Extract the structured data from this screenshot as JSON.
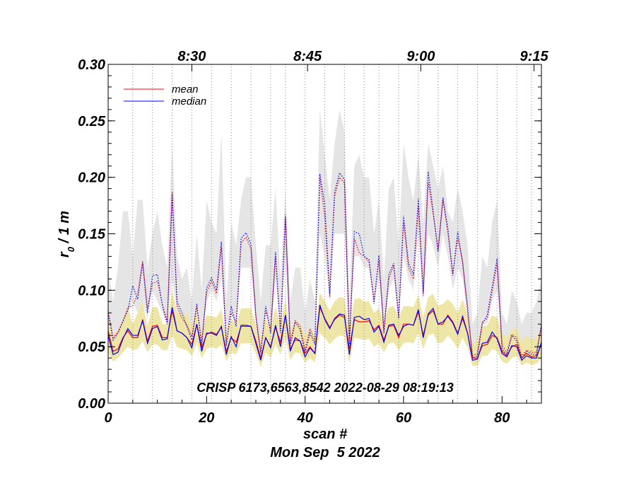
{
  "chart_data": {
    "type": "line",
    "title": "",
    "xlabel": "scan #",
    "ylabel_main": "r",
    "ylabel_sub": "0",
    "ylabel_rest": " / 1 m",
    "date_label": "Mon Sep  5 2022",
    "annotation": "CRISP 6173,6563,8542 2022-08-29 08:19:13",
    "xlim": [
      0,
      88
    ],
    "ylim": [
      0,
      0.3
    ],
    "x_ticks": [
      0,
      20,
      40,
      60,
      80
    ],
    "x_tick_labels": [
      "0",
      "20",
      "40",
      "60",
      "80"
    ],
    "y_ticks": [
      0.0,
      0.05,
      0.1,
      0.15,
      0.2,
      0.25,
      0.3
    ],
    "y_tick_labels": [
      "0.00",
      "0.05",
      "0.10",
      "0.15",
      "0.20",
      "0.25",
      "0.30"
    ],
    "top_axis_labels": [
      {
        "scan": 17,
        "label": "8:30"
      },
      {
        "scan": 40.5,
        "label": "8:45"
      },
      {
        "scan": 63.5,
        "label": "9:00"
      },
      {
        "scan": 86.5,
        "label": "9:15"
      }
    ],
    "vertical_grid_scans": [
      5,
      9,
      13,
      17,
      21,
      25,
      29,
      33,
      36,
      40,
      44,
      48,
      52,
      55,
      59,
      63,
      67,
      71,
      75,
      79,
      83,
      86
    ],
    "legend": [
      {
        "label": "mean",
        "color": "#ff0000"
      },
      {
        "label": "median",
        "color": "#0000ff"
      }
    ],
    "colors": {
      "mean": "#ff0000",
      "median": "#0000ff",
      "gray_band": "#e5e5e5",
      "yellow_band": "#eee6a6"
    },
    "x": [
      0,
      1,
      2,
      3,
      4,
      5,
      6,
      7,
      8,
      9,
      10,
      11,
      12,
      13,
      14,
      15,
      16,
      17,
      18,
      19,
      20,
      21,
      22,
      23,
      24,
      25,
      26,
      27,
      28,
      29,
      30,
      31,
      32,
      33,
      34,
      35,
      36,
      37,
      38,
      39,
      40,
      41,
      42,
      43,
      44,
      45,
      46,
      47,
      48,
      49,
      50,
      51,
      52,
      53,
      54,
      55,
      56,
      57,
      58,
      59,
      60,
      61,
      62,
      63,
      64,
      65,
      66,
      67,
      68,
      69,
      70,
      71,
      72,
      73,
      74,
      75,
      76,
      77,
      78,
      79,
      80,
      81,
      82,
      83,
      84,
      85,
      86,
      87,
      88
    ],
    "series": [
      {
        "name": "mean",
        "style": "solid",
        "color": "#ff0000",
        "values": [
          0.064,
          0.046,
          0.048,
          0.058,
          0.064,
          0.058,
          0.058,
          0.074,
          0.055,
          0.068,
          0.069,
          0.058,
          0.058,
          0.082,
          0.064,
          0.062,
          0.058,
          0.052,
          0.07,
          0.049,
          0.061,
          0.063,
          0.061,
          0.067,
          0.046,
          0.058,
          0.054,
          0.068,
          0.068,
          0.068,
          0.055,
          0.04,
          0.058,
          0.05,
          0.067,
          0.054,
          0.078,
          0.048,
          0.056,
          0.055,
          0.044,
          0.05,
          0.044,
          0.085,
          0.075,
          0.067,
          0.074,
          0.078,
          0.076,
          0.048,
          0.074,
          0.072,
          0.072,
          0.073,
          0.065,
          0.069,
          0.056,
          0.068,
          0.069,
          0.058,
          0.07,
          0.07,
          0.069,
          0.081,
          0.06,
          0.078,
          0.082,
          0.07,
          0.07,
          0.078,
          0.072,
          0.062,
          0.075,
          0.062,
          0.04,
          0.04,
          0.051,
          0.052,
          0.06,
          0.058,
          0.046,
          0.042,
          0.05,
          0.052,
          0.04,
          0.044,
          0.041,
          0.042,
          0.052
        ]
      },
      {
        "name": "median",
        "style": "solid",
        "color": "#0000ff",
        "values": [
          0.06,
          0.043,
          0.045,
          0.057,
          0.066,
          0.06,
          0.06,
          0.073,
          0.053,
          0.066,
          0.068,
          0.056,
          0.057,
          0.085,
          0.064,
          0.062,
          0.058,
          0.049,
          0.07,
          0.046,
          0.062,
          0.062,
          0.06,
          0.068,
          0.043,
          0.059,
          0.05,
          0.069,
          0.069,
          0.068,
          0.053,
          0.038,
          0.058,
          0.049,
          0.069,
          0.05,
          0.078,
          0.046,
          0.058,
          0.055,
          0.041,
          0.049,
          0.044,
          0.087,
          0.074,
          0.066,
          0.075,
          0.079,
          0.078,
          0.043,
          0.076,
          0.077,
          0.074,
          0.075,
          0.063,
          0.068,
          0.054,
          0.069,
          0.07,
          0.06,
          0.068,
          0.07,
          0.069,
          0.083,
          0.058,
          0.079,
          0.084,
          0.07,
          0.072,
          0.077,
          0.071,
          0.061,
          0.077,
          0.062,
          0.038,
          0.039,
          0.053,
          0.054,
          0.063,
          0.057,
          0.044,
          0.041,
          0.051,
          0.05,
          0.038,
          0.042,
          0.04,
          0.04,
          0.054
        ]
      },
      {
        "name": "mean-upper",
        "style": "dotted",
        "color": "#ff0000",
        "values": [
          0.082,
          0.058,
          0.063,
          0.072,
          0.085,
          0.086,
          0.097,
          0.126,
          0.084,
          0.106,
          0.108,
          0.088,
          0.073,
          0.187,
          0.086,
          0.075,
          0.069,
          0.059,
          0.085,
          0.054,
          0.098,
          0.108,
          0.097,
          0.138,
          0.054,
          0.08,
          0.072,
          0.142,
          0.147,
          0.137,
          0.078,
          0.046,
          0.082,
          0.065,
          0.129,
          0.065,
          0.164,
          0.054,
          0.073,
          0.068,
          0.047,
          0.066,
          0.055,
          0.2,
          0.165,
          0.094,
          0.183,
          0.2,
          0.195,
          0.056,
          0.146,
          0.133,
          0.13,
          0.125,
          0.091,
          0.127,
          0.065,
          0.11,
          0.122,
          0.076,
          0.16,
          0.12,
          0.11,
          0.174,
          0.095,
          0.196,
          0.168,
          0.136,
          0.18,
          0.151,
          0.115,
          0.146,
          0.126,
          0.08,
          0.042,
          0.044,
          0.072,
          0.075,
          0.099,
          0.124,
          0.051,
          0.045,
          0.061,
          0.058,
          0.042,
          0.047,
          0.045,
          0.045,
          0.068
        ]
      },
      {
        "name": "median-upper",
        "style": "dotted",
        "color": "#0000ff",
        "values": [
          0.08,
          0.056,
          0.062,
          0.073,
          0.082,
          0.104,
          0.092,
          0.124,
          0.08,
          0.113,
          0.114,
          0.087,
          0.07,
          0.185,
          0.09,
          0.08,
          0.068,
          0.056,
          0.088,
          0.051,
          0.102,
          0.111,
          0.1,
          0.143,
          0.051,
          0.086,
          0.068,
          0.146,
          0.151,
          0.141,
          0.076,
          0.044,
          0.086,
          0.062,
          0.134,
          0.062,
          0.167,
          0.051,
          0.072,
          0.065,
          0.045,
          0.062,
          0.052,
          0.203,
          0.176,
          0.097,
          0.187,
          0.204,
          0.198,
          0.052,
          0.152,
          0.15,
          0.13,
          0.127,
          0.088,
          0.131,
          0.062,
          0.114,
          0.124,
          0.075,
          0.166,
          0.124,
          0.114,
          0.181,
          0.098,
          0.205,
          0.17,
          0.134,
          0.182,
          0.155,
          0.113,
          0.152,
          0.124,
          0.086,
          0.04,
          0.042,
          0.07,
          0.078,
          0.103,
          0.128,
          0.048,
          0.043,
          0.06,
          0.055,
          0.04,
          0.046,
          0.043,
          0.043,
          0.07
        ]
      },
      {
        "name": "gray-band-upper",
        "style": "band",
        "values": [
          0.12,
          0.09,
          0.12,
          0.17,
          0.17,
          0.13,
          0.18,
          0.18,
          0.12,
          0.15,
          0.17,
          0.14,
          0.12,
          0.23,
          0.13,
          0.11,
          0.12,
          0.09,
          0.15,
          0.1,
          0.18,
          0.16,
          0.15,
          0.24,
          0.09,
          0.16,
          0.14,
          0.18,
          0.2,
          0.2,
          0.14,
          0.09,
          0.14,
          0.14,
          0.19,
          0.11,
          0.19,
          0.09,
          0.12,
          0.12,
          0.08,
          0.11,
          0.09,
          0.26,
          0.22,
          0.18,
          0.23,
          0.26,
          0.24,
          0.09,
          0.21,
          0.22,
          0.2,
          0.2,
          0.15,
          0.18,
          0.11,
          0.19,
          0.2,
          0.14,
          0.23,
          0.2,
          0.18,
          0.22,
          0.16,
          0.23,
          0.21,
          0.19,
          0.21,
          0.17,
          0.16,
          0.19,
          0.17,
          0.14,
          0.07,
          0.08,
          0.13,
          0.12,
          0.16,
          0.18,
          0.08,
          0.07,
          0.1,
          0.09,
          0.07,
          0.08,
          0.08,
          0.09,
          0.11
        ]
      },
      {
        "name": "gray-band-lower",
        "style": "band",
        "values": [
          0.08,
          0.058,
          0.06,
          0.075,
          0.08,
          0.09,
          0.08,
          0.09,
          0.075,
          0.1,
          0.09,
          0.08,
          0.07,
          0.11,
          0.08,
          0.075,
          0.07,
          0.06,
          0.08,
          0.055,
          0.09,
          0.1,
          0.09,
          0.11,
          0.055,
          0.08,
          0.07,
          0.12,
          0.12,
          0.12,
          0.075,
          0.05,
          0.08,
          0.065,
          0.11,
          0.065,
          0.13,
          0.055,
          0.07,
          0.065,
          0.05,
          0.06,
          0.055,
          0.15,
          0.13,
          0.09,
          0.15,
          0.15,
          0.15,
          0.06,
          0.13,
          0.13,
          0.12,
          0.12,
          0.09,
          0.11,
          0.065,
          0.1,
          0.11,
          0.075,
          0.13,
          0.11,
          0.1,
          0.15,
          0.09,
          0.15,
          0.14,
          0.12,
          0.15,
          0.13,
          0.1,
          0.12,
          0.11,
          0.08,
          0.045,
          0.045,
          0.07,
          0.07,
          0.09,
          0.1,
          0.055,
          0.048,
          0.06,
          0.058,
          0.045,
          0.048,
          0.046,
          0.046,
          0.07
        ]
      },
      {
        "name": "yellow-band-upper",
        "style": "band",
        "values": [
          0.078,
          0.06,
          0.065,
          0.075,
          0.085,
          0.07,
          0.08,
          0.09,
          0.068,
          0.085,
          0.085,
          0.07,
          0.07,
          0.1,
          0.08,
          0.078,
          0.08,
          0.068,
          0.085,
          0.062,
          0.078,
          0.077,
          0.076,
          0.083,
          0.06,
          0.075,
          0.07,
          0.084,
          0.084,
          0.084,
          0.07,
          0.055,
          0.075,
          0.066,
          0.085,
          0.07,
          0.092,
          0.063,
          0.073,
          0.07,
          0.06,
          0.066,
          0.06,
          0.098,
          0.09,
          0.082,
          0.09,
          0.094,
          0.093,
          0.063,
          0.092,
          0.093,
          0.09,
          0.09,
          0.08,
          0.084,
          0.072,
          0.085,
          0.086,
          0.076,
          0.086,
          0.086,
          0.085,
          0.096,
          0.076,
          0.094,
          0.097,
          0.086,
          0.088,
          0.092,
          0.088,
          0.08,
          0.092,
          0.078,
          0.053,
          0.056,
          0.068,
          0.069,
          0.078,
          0.076,
          0.062,
          0.058,
          0.065,
          0.067,
          0.054,
          0.06,
          0.056,
          0.058,
          0.068
        ]
      },
      {
        "name": "yellow-band-lower",
        "style": "band",
        "values": [
          0.045,
          0.037,
          0.04,
          0.045,
          0.05,
          0.047,
          0.048,
          0.055,
          0.045,
          0.052,
          0.052,
          0.047,
          0.047,
          0.06,
          0.05,
          0.048,
          0.047,
          0.042,
          0.053,
          0.04,
          0.048,
          0.05,
          0.048,
          0.052,
          0.037,
          0.045,
          0.043,
          0.053,
          0.053,
          0.053,
          0.044,
          0.032,
          0.045,
          0.04,
          0.052,
          0.043,
          0.058,
          0.038,
          0.045,
          0.044,
          0.036,
          0.04,
          0.036,
          0.062,
          0.058,
          0.052,
          0.057,
          0.06,
          0.059,
          0.036,
          0.058,
          0.057,
          0.056,
          0.057,
          0.05,
          0.053,
          0.045,
          0.053,
          0.054,
          0.047,
          0.053,
          0.054,
          0.053,
          0.062,
          0.048,
          0.06,
          0.062,
          0.053,
          0.054,
          0.06,
          0.055,
          0.048,
          0.058,
          0.049,
          0.033,
          0.033,
          0.042,
          0.042,
          0.048,
          0.046,
          0.037,
          0.035,
          0.04,
          0.042,
          0.033,
          0.036,
          0.034,
          0.035,
          0.04
        ]
      }
    ]
  }
}
